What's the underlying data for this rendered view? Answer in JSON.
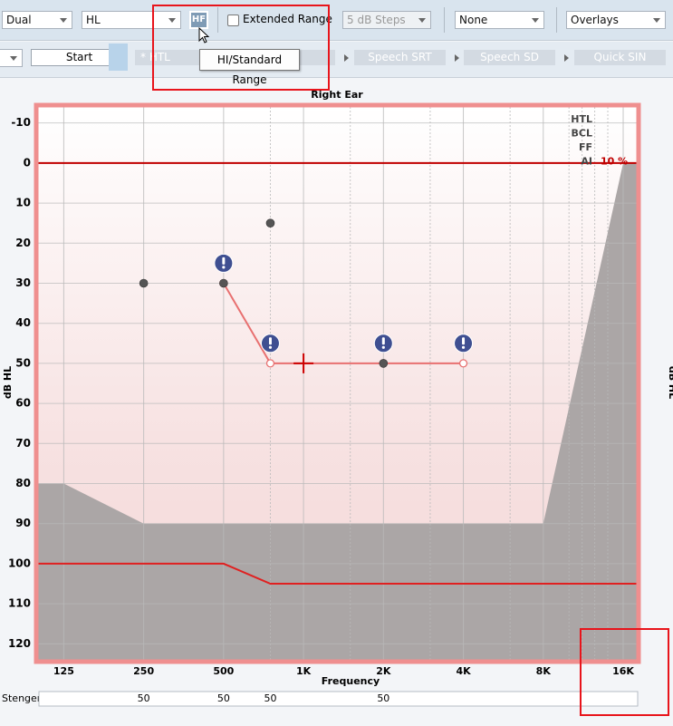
{
  "toolbar": {
    "mode": "Dual",
    "scale": "HL",
    "hf_button": "HF",
    "extended_range": "Extended Range",
    "steps": "5 dB Steps",
    "masking": "None",
    "overlays": "Overlays",
    "tooltip": "HI/Standard Range"
  },
  "tabs": {
    "start": "Start",
    "items": [
      "* HTL",
      "Speech SRT",
      "Speech SD",
      "Quick SIN"
    ]
  },
  "chart_data": {
    "type": "audiogram",
    "title": "Right Ear",
    "xlabel": "Frequency",
    "ylabel": "dB HL",
    "xscale": "log",
    "yreversed": true,
    "grid": true,
    "xlim": [
      100,
      18000
    ],
    "ylim": [
      -14,
      124
    ],
    "xticks": [
      125,
      250,
      500,
      {
        "value": 1000,
        "label": "1K"
      },
      {
        "value": 2000,
        "label": "2K"
      },
      {
        "value": 4000,
        "label": "4K"
      },
      {
        "value": 8000,
        "label": "8K"
      },
      {
        "value": 16000,
        "label": "16K"
      }
    ],
    "x_minor_gridlines": [
      750,
      1500,
      3000,
      6000,
      10000,
      11200,
      12500,
      14000
    ],
    "yticks": [
      -10,
      0,
      10,
      20,
      30,
      40,
      50,
      60,
      70,
      80,
      90,
      100,
      110,
      120
    ],
    "area": {
      "color": "#aba6a6",
      "x": [
        100,
        125,
        250,
        8000,
        16000,
        18000
      ],
      "values": [
        80,
        80,
        90,
        90,
        0,
        0
      ]
    },
    "reference_lines": [
      {
        "color": "#c00000",
        "x": [
          100,
          18000
        ],
        "values": [
          0,
          0
        ]
      },
      {
        "color": "#e02020",
        "x": [
          100,
          500,
          750,
          18000
        ],
        "values": [
          100,
          100,
          105,
          105
        ]
      }
    ],
    "series": [
      {
        "color": "#e87070",
        "marker": "open-circle",
        "x": [
          500,
          750,
          2000,
          4000
        ],
        "values": [
          30,
          50,
          50,
          50
        ]
      }
    ],
    "points": {
      "color": "#555555",
      "x": [
        250,
        500,
        750,
        2000
      ],
      "values": [
        30,
        30,
        15,
        50
      ]
    },
    "alerts": {
      "color": "#3f4f91",
      "x": [
        500,
        750,
        2000,
        4000
      ],
      "values": [
        25,
        45,
        45,
        45
      ]
    },
    "cursor": {
      "color": "#cc0000",
      "x": 1000,
      "value": 50
    },
    "legend_labels": [
      "HTL",
      "BCL",
      "FF",
      "AI"
    ],
    "ai": {
      "value": 10,
      "value_label": "10 %"
    }
  },
  "stenger": {
    "label": "Stenger",
    "x": [
      250,
      500,
      750,
      2000
    ],
    "values": [
      50,
      50,
      50,
      50
    ]
  }
}
